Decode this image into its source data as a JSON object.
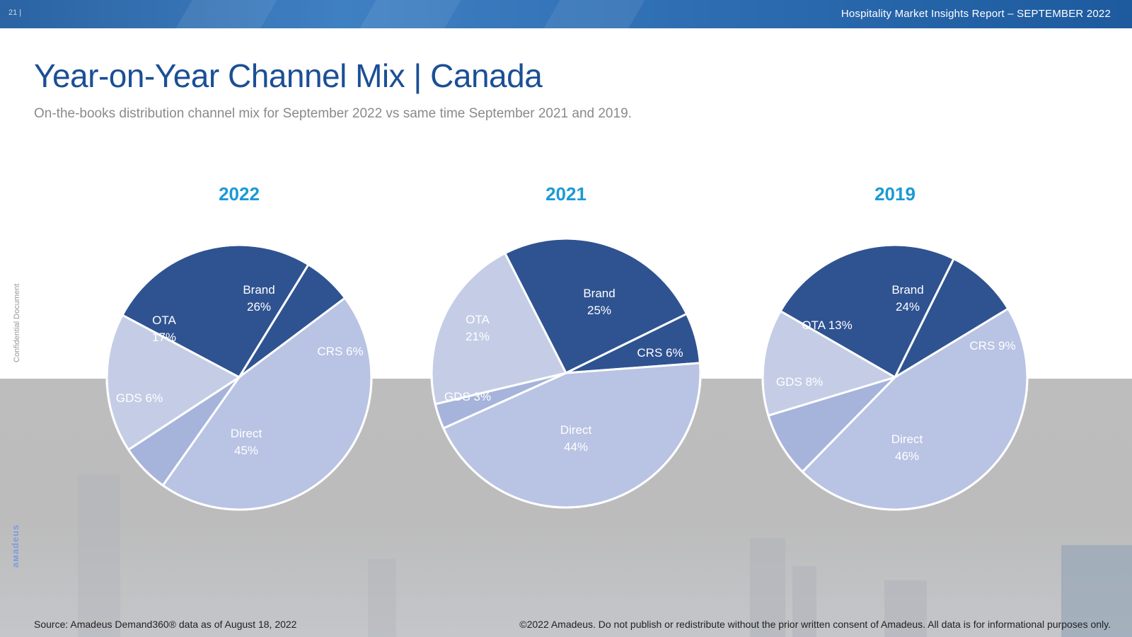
{
  "header": {
    "page_number": "21 |",
    "report_title": "Hospitality Market Insights Report – SEPTEMBER 2022"
  },
  "slide": {
    "title": "Year-on-Year Channel Mix | Canada",
    "subtitle": "On-the-books distribution channel mix for September 2022 vs same time September 2021 and 2019.",
    "side_label": "Confidential Document",
    "logo_text": "aмadeus"
  },
  "footer": {
    "source": "Source: Amadeus Demand360® data as of August 18, 2022",
    "copyright": "©2022 Amadeus. Do not publish or redistribute without the prior written consent of Amadeus. All data is for informational purposes only."
  },
  "colors": {
    "Brand": "#2f5391",
    "CRS": "#2f5391",
    "Direct": "#b9c3e3",
    "GDS": "#a6b4db",
    "OTA": "#c5cde6",
    "year_label": "#1a9ad6",
    "title": "#1b4f96"
  },
  "chart_data": [
    {
      "type": "pie",
      "title": "2022",
      "slices": [
        {
          "name": "Brand",
          "value": 26,
          "label": [
            "Brand",
            "26%"
          ]
        },
        {
          "name": "CRS",
          "value": 6,
          "label": [
            "CRS 6%"
          ]
        },
        {
          "name": "Direct",
          "value": 45,
          "label": [
            "Direct",
            "45%"
          ]
        },
        {
          "name": "GDS",
          "value": 6,
          "label": [
            "GDS 6%"
          ]
        },
        {
          "name": "OTA",
          "value": 17,
          "label": [
            "OTA",
            "17%"
          ]
        }
      ]
    },
    {
      "type": "pie",
      "title": "2021",
      "slices": [
        {
          "name": "Brand",
          "value": 25,
          "label": [
            "Brand",
            "25%"
          ]
        },
        {
          "name": "CRS",
          "value": 6,
          "label": [
            "CRS 6%"
          ]
        },
        {
          "name": "Direct",
          "value": 44,
          "label": [
            "Direct",
            "44%"
          ]
        },
        {
          "name": "GDS",
          "value": 3,
          "label": [
            "GDS 3%"
          ]
        },
        {
          "name": "OTA",
          "value": 21,
          "label": [
            "OTA",
            "21%"
          ]
        }
      ]
    },
    {
      "type": "pie",
      "title": "2019",
      "slices": [
        {
          "name": "Brand",
          "value": 24,
          "label": [
            "Brand",
            "24%"
          ]
        },
        {
          "name": "CRS",
          "value": 9,
          "label": [
            "CRS 9%"
          ]
        },
        {
          "name": "Direct",
          "value": 46,
          "label": [
            "Direct",
            "46%"
          ]
        },
        {
          "name": "GDS",
          "value": 8,
          "label": [
            "GDS 8%"
          ]
        },
        {
          "name": "OTA",
          "value": 13,
          "label": [
            "OTA 13%"
          ]
        }
      ]
    }
  ]
}
